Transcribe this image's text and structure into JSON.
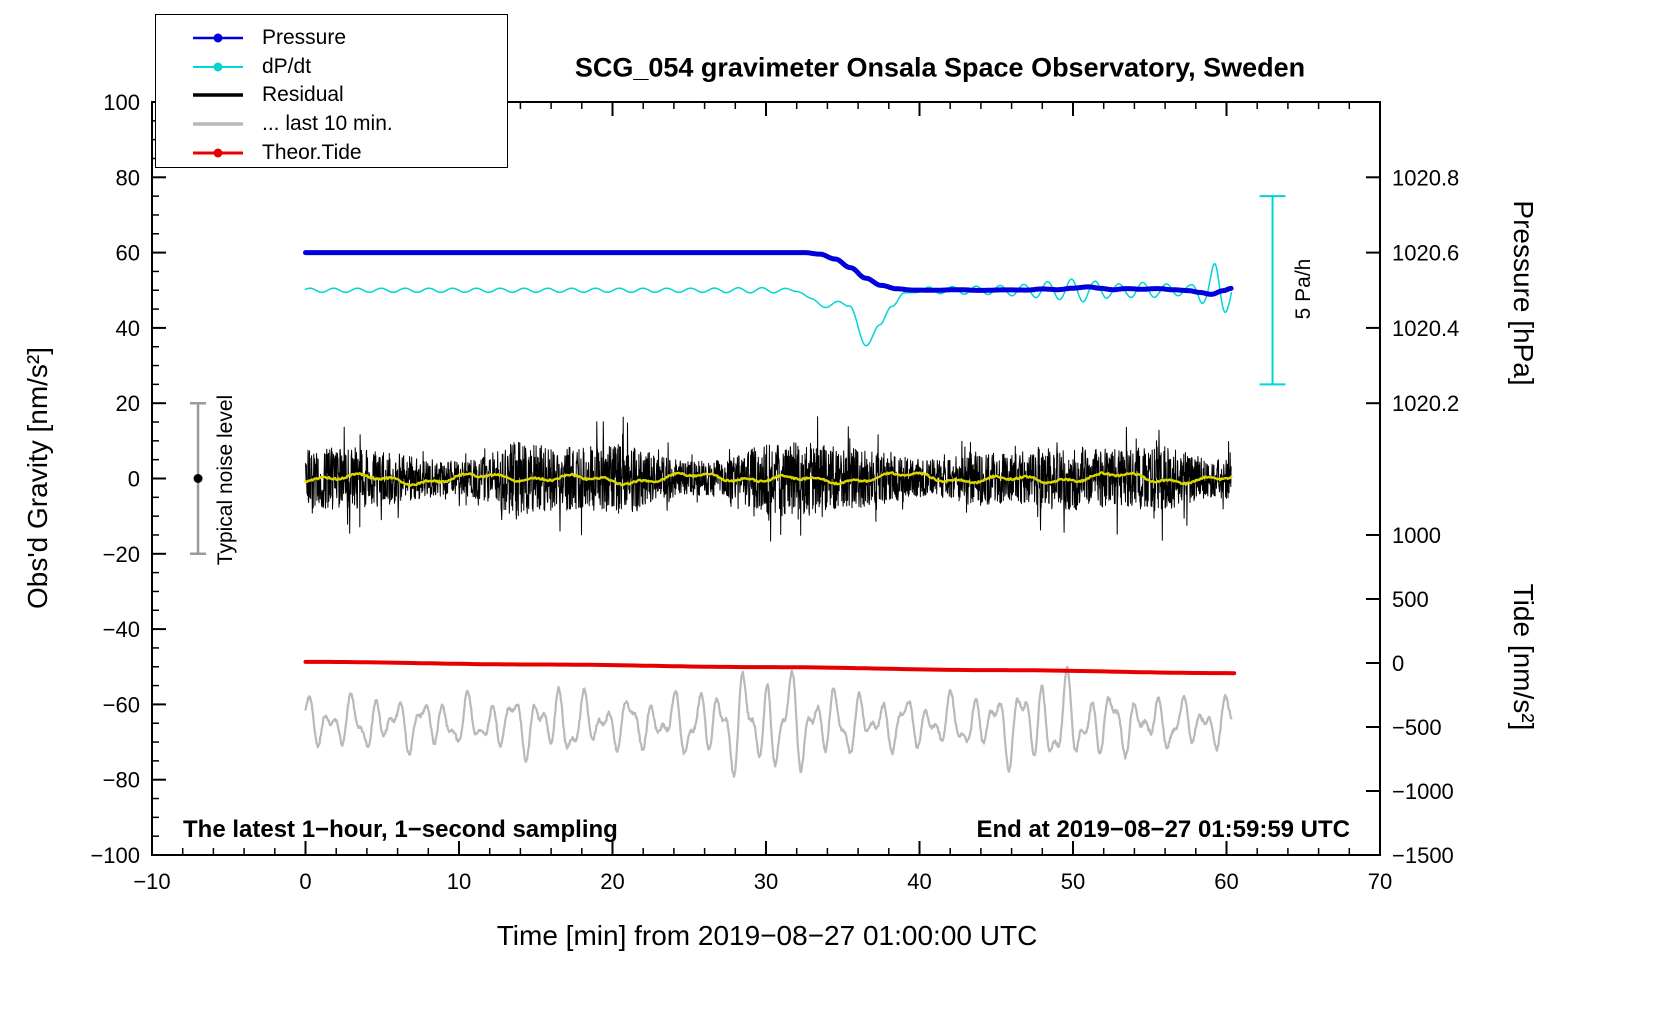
{
  "chart_data": {
    "type": "line",
    "title": "SCG_054 gravimeter Onsala Space Observatory, Sweden",
    "xlabel": "Time [min] from 2019−08−27 01:00:00 UTC",
    "ylabel_left": "Obs'd Gravity [nm/s²]",
    "ylabel_right_pressure": "Pressure [hPa]",
    "ylabel_right_tide": "Tide [nm/s²]",
    "annotation_left": "The latest 1−hour, 1−second sampling",
    "annotation_right": "End at 2019−08−27 01:59:59 UTC",
    "xlim": [
      -10,
      70
    ],
    "ylim": [
      -100,
      100
    ],
    "x_ticks": {
      "values": [
        -10,
        0,
        10,
        20,
        30,
        40,
        50,
        60,
        70
      ],
      "labels": [
        "−10",
        "0",
        "10",
        "20",
        "30",
        "40",
        "50",
        "60",
        "70"
      ],
      "minor_step": 2
    },
    "y_ticks": {
      "values": [
        100,
        80,
        60,
        40,
        20,
        0,
        -20,
        -40,
        -60,
        -80,
        -100
      ],
      "labels": [
        "100",
        "80",
        "60",
        "40",
        "20",
        "0",
        "−20",
        "−40",
        "−60",
        "−80",
        "−100"
      ],
      "minor_step": 5
    },
    "right_pressure_ticks": {
      "positions": [
        80,
        60,
        40,
        20
      ],
      "labels": [
        "1020.8",
        "1020.6",
        "1020.4",
        "1020.2"
      ]
    },
    "right_tide_ticks": {
      "positions": [
        -15,
        -32,
        -49,
        -66,
        -83,
        -100
      ],
      "labels": [
        "1000",
        "500",
        "0",
        "−500",
        "−1000",
        "−1500"
      ]
    },
    "legend": [
      {
        "label": "Pressure",
        "color": "#0000dd",
        "line_width": 2.5,
        "marker": true
      },
      {
        "label": "dP/dt",
        "color": "#00d4d4",
        "line_width": 2,
        "marker": true
      },
      {
        "label": "Residual",
        "color": "#000000",
        "line_width": 3.5,
        "marker": false
      },
      {
        "label": "... last 10 min.",
        "color": "#b9b9b9",
        "line_width": 3.5,
        "marker": false
      },
      {
        "label": "Theor.Tide",
        "color": "#e80000",
        "line_width": 3,
        "marker": true
      }
    ],
    "series": {
      "pressure": {
        "name": "Pressure",
        "color": "#0000dd",
        "width": 5,
        "step": 0.1,
        "keypoints": [
          [
            0,
            60
          ],
          [
            32.5,
            60
          ],
          [
            33.5,
            59.6
          ],
          [
            34.5,
            58.3
          ],
          [
            35.5,
            56
          ],
          [
            36.5,
            53.2
          ],
          [
            37.5,
            51.3
          ],
          [
            38.5,
            50.4
          ],
          [
            39.5,
            50.05
          ],
          [
            41,
            50
          ],
          [
            42.5,
            50.15
          ],
          [
            44,
            49.95
          ],
          [
            45.5,
            50.1
          ],
          [
            47,
            50.05
          ],
          [
            48,
            50.35
          ],
          [
            49,
            50.15
          ],
          [
            50,
            50.55
          ],
          [
            51,
            50.9
          ],
          [
            51.8,
            50.5
          ],
          [
            52.6,
            50.15
          ],
          [
            53.5,
            50.45
          ],
          [
            54.5,
            50.25
          ],
          [
            55.5,
            50.45
          ],
          [
            56.5,
            50.15
          ],
          [
            57.5,
            49.9
          ],
          [
            58.3,
            49.4
          ],
          [
            59,
            48.9
          ],
          [
            59.8,
            49.9
          ],
          [
            60.3,
            50.5
          ]
        ]
      },
      "dpdt": {
        "name": "dP/dt",
        "color": "#00d4d4",
        "width": 1.5,
        "step": 0.04,
        "base": 50,
        "ripple_period": 1.55,
        "x_range": [
          0,
          60.3
        ],
        "amp_keypoints": [
          [
            0,
            0.55
          ],
          [
            25,
            0.55
          ],
          [
            30,
            0.7
          ],
          [
            32.5,
            0.3
          ],
          [
            39,
            0.3
          ],
          [
            41,
            0.9
          ],
          [
            44,
            1.1
          ],
          [
            46.5,
            1.5
          ],
          [
            48.5,
            2.3
          ],
          [
            50.5,
            3.1
          ],
          [
            51.5,
            2.4
          ],
          [
            53,
            1.7
          ],
          [
            54.5,
            2.1
          ],
          [
            56,
            1.7
          ],
          [
            57.5,
            1.3
          ],
          [
            58.5,
            3.5
          ],
          [
            59.4,
            7.5
          ],
          [
            60.3,
            5
          ]
        ],
        "dip_keypoints": [
          [
            0,
            0
          ],
          [
            32,
            0
          ],
          [
            33,
            -2.5
          ],
          [
            34,
            -4.5
          ],
          [
            34.8,
            -3
          ],
          [
            35.4,
            -4
          ],
          [
            36.5,
            -14.5
          ],
          [
            37.4,
            -9.5
          ],
          [
            38.2,
            -4
          ],
          [
            39,
            -1
          ],
          [
            40,
            0
          ],
          [
            60.3,
            0
          ]
        ]
      },
      "residual": {
        "name": "Residual",
        "color": "#000000",
        "width": 1,
        "step": 0.02,
        "center": 0,
        "amplitude": 6.5,
        "spike_chance": 0.05,
        "spike_gain": 1.9,
        "seed": 20,
        "x_range": [
          0,
          60.3
        ],
        "env_wave": {
          "period": 16,
          "amp": 0.3,
          "phase": 0.8
        },
        "env_bumps": [
          {
            "x": 13.5,
            "w": 1.3,
            "a": 0.55
          },
          {
            "x": 21,
            "w": 1,
            "a": 0.3
          },
          {
            "x": 30.5,
            "w": 1.6,
            "a": 0.5
          },
          {
            "x": 43.5,
            "w": 1.1,
            "a": 0.35
          },
          {
            "x": 56,
            "w": 1.6,
            "a": 0.55
          }
        ]
      },
      "residual_mean": {
        "name": "Residual smoothed",
        "color": "#d8d800",
        "width": 2.4,
        "step": 0.08,
        "center": 0,
        "seed": 5,
        "jitter": 0.25,
        "x_range": [
          0,
          60.3
        ],
        "waves": [
          {
            "period": 7,
            "amp": 0.8
          },
          {
            "period": 2.3,
            "amp": 0.5
          },
          {
            "period": 13,
            "amp": 0.5
          }
        ]
      },
      "tide": {
        "name": "Theor.Tide",
        "color": "#e80000",
        "width": 4,
        "step": 0.5,
        "keypoints": [
          [
            0,
            -48.7
          ],
          [
            15,
            -49.4
          ],
          [
            30,
            -50.1
          ],
          [
            45,
            -50.9
          ],
          [
            60.3,
            -51.7
          ]
        ]
      },
      "last10": {
        "name": "... last 10 min.",
        "color": "#b9b9b9",
        "width": 2.2,
        "step": 0.04,
        "center": -65,
        "seed": 9,
        "x_range": [
          0,
          60.3
        ],
        "waves": [
          {
            "period": 1.5,
            "amp": 4.2
          },
          {
            "period": 0.85,
            "amp": 2.6
          },
          {
            "period": 2.6,
            "amp": 1.8
          }
        ],
        "env_bumps": [
          {
            "x": 16,
            "w": 1.5,
            "a": 0.4
          },
          {
            "x": 30,
            "w": 3,
            "a": 1.05
          },
          {
            "x": 48.5,
            "w": 2.5,
            "a": 0.85
          }
        ]
      }
    },
    "noise_bar": {
      "x": -7,
      "y_min": -20,
      "y_max": 20,
      "dot_y": 0,
      "color": "#9a9a9a",
      "label": "Typical noise level"
    },
    "scale_bar": {
      "x": 63,
      "y_min": 25,
      "y_max": 75,
      "color": "#00d4d4",
      "label": "5 Pa/h"
    }
  }
}
